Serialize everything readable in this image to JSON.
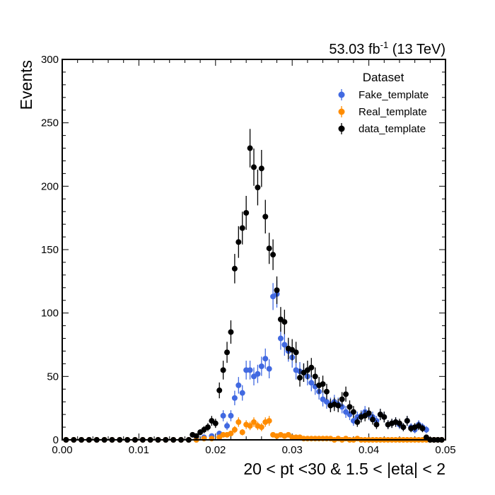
{
  "chart_data": {
    "type": "scatter",
    "title": "",
    "lumi_value": "53.03 fb",
    "lumi_exponent": "-1",
    "lumi_energy": " (13 TeV)",
    "xlabel": "20 < pt <30 & 1.5 < |eta| < 2",
    "ylabel": "Events",
    "xlim": [
      0,
      0.05
    ],
    "ylim": [
      0,
      300
    ],
    "x_ticks": [
      0.0,
      0.01,
      0.02,
      0.03,
      0.04,
      0.05
    ],
    "x_tick_labels": [
      "0.00",
      "0.01",
      "0.02",
      "0.03",
      "0.04",
      "0.05"
    ],
    "y_ticks": [
      0,
      50,
      100,
      150,
      200,
      250,
      300
    ],
    "y_tick_labels": [
      "0",
      "50",
      "100",
      "150",
      "200",
      "250",
      "300"
    ],
    "legend": {
      "title": "Dataset",
      "placement": "top-right",
      "entries": [
        "Fake_template",
        "Real_template",
        "data_template"
      ]
    },
    "colors": {
      "Fake_template": "#4169e1",
      "Real_template": "#ff8c00",
      "data_template": "#000000"
    },
    "series": [
      {
        "name": "Fake_template",
        "points": [
          [
            0.0005,
            0
          ],
          [
            0.0015,
            0
          ],
          [
            0.0025,
            0
          ],
          [
            0.0035,
            0
          ],
          [
            0.0045,
            0
          ],
          [
            0.0055,
            0
          ],
          [
            0.0065,
            0
          ],
          [
            0.0075,
            0
          ],
          [
            0.0085,
            0
          ],
          [
            0.0095,
            0
          ],
          [
            0.0105,
            0
          ],
          [
            0.0115,
            0
          ],
          [
            0.0125,
            0
          ],
          [
            0.0135,
            0
          ],
          [
            0.0145,
            0
          ],
          [
            0.0155,
            0
          ],
          [
            0.0165,
            0
          ],
          [
            0.0175,
            1
          ],
          [
            0.0185,
            2
          ],
          [
            0.0195,
            3
          ],
          [
            0.0205,
            5
          ],
          [
            0.021,
            19
          ],
          [
            0.0215,
            11
          ],
          [
            0.022,
            19
          ],
          [
            0.0225,
            33
          ],
          [
            0.023,
            43
          ],
          [
            0.0235,
            37
          ],
          [
            0.024,
            55
          ],
          [
            0.0245,
            55
          ],
          [
            0.025,
            50
          ],
          [
            0.0255,
            52
          ],
          [
            0.026,
            58
          ],
          [
            0.0265,
            64
          ],
          [
            0.027,
            56
          ],
          [
            0.0275,
            113
          ],
          [
            0.028,
            115
          ],
          [
            0.0285,
            80
          ],
          [
            0.029,
            75
          ],
          [
            0.0295,
            70
          ],
          [
            0.03,
            65
          ],
          [
            0.0305,
            55
          ],
          [
            0.031,
            54
          ],
          [
            0.0315,
            53
          ],
          [
            0.032,
            50
          ],
          [
            0.0325,
            45
          ],
          [
            0.033,
            42
          ],
          [
            0.0335,
            38
          ],
          [
            0.034,
            32
          ],
          [
            0.0345,
            30
          ],
          [
            0.035,
            28
          ],
          [
            0.0355,
            30
          ],
          [
            0.036,
            28
          ],
          [
            0.0365,
            26
          ],
          [
            0.037,
            22
          ],
          [
            0.0375,
            20
          ],
          [
            0.038,
            15
          ],
          [
            0.0385,
            18
          ],
          [
            0.039,
            19
          ],
          [
            0.0395,
            22
          ],
          [
            0.04,
            20
          ],
          [
            0.0405,
            18
          ],
          [
            0.041,
            15
          ],
          [
            0.0415,
            20
          ],
          [
            0.042,
            18
          ],
          [
            0.0425,
            12
          ],
          [
            0.043,
            13
          ],
          [
            0.0435,
            14
          ],
          [
            0.044,
            12
          ],
          [
            0.0445,
            10
          ],
          [
            0.045,
            15
          ],
          [
            0.0455,
            10
          ],
          [
            0.046,
            8
          ],
          [
            0.0465,
            12
          ],
          [
            0.047,
            10
          ],
          [
            0.0475,
            8
          ],
          [
            0.048,
            0
          ],
          [
            0.0485,
            0
          ],
          [
            0.049,
            0
          ],
          [
            0.0495,
            0
          ]
        ]
      },
      {
        "name": "Real_template",
        "points": [
          [
            0.0005,
            0
          ],
          [
            0.0015,
            0
          ],
          [
            0.0025,
            0
          ],
          [
            0.0035,
            0
          ],
          [
            0.0045,
            0
          ],
          [
            0.0055,
            0
          ],
          [
            0.0065,
            0
          ],
          [
            0.0075,
            0
          ],
          [
            0.0085,
            0
          ],
          [
            0.0095,
            0
          ],
          [
            0.0105,
            0
          ],
          [
            0.0115,
            0
          ],
          [
            0.0125,
            0
          ],
          [
            0.0135,
            0
          ],
          [
            0.0145,
            0
          ],
          [
            0.0155,
            0
          ],
          [
            0.0165,
            0
          ],
          [
            0.0175,
            0
          ],
          [
            0.0185,
            1
          ],
          [
            0.0195,
            1
          ],
          [
            0.0205,
            2
          ],
          [
            0.021,
            4
          ],
          [
            0.0215,
            4
          ],
          [
            0.022,
            5
          ],
          [
            0.0225,
            8
          ],
          [
            0.023,
            14
          ],
          [
            0.0235,
            6
          ],
          [
            0.024,
            12
          ],
          [
            0.0245,
            11
          ],
          [
            0.025,
            14
          ],
          [
            0.0255,
            11
          ],
          [
            0.026,
            10
          ],
          [
            0.0265,
            14
          ],
          [
            0.027,
            15
          ],
          [
            0.0275,
            4
          ],
          [
            0.028,
            3
          ],
          [
            0.0285,
            4
          ],
          [
            0.029,
            3
          ],
          [
            0.0295,
            4
          ],
          [
            0.03,
            2
          ],
          [
            0.0305,
            2
          ],
          [
            0.031,
            2
          ],
          [
            0.0315,
            1
          ],
          [
            0.032,
            1
          ],
          [
            0.0325,
            1
          ],
          [
            0.033,
            1
          ],
          [
            0.0335,
            1
          ],
          [
            0.034,
            1
          ],
          [
            0.0345,
            1
          ],
          [
            0.035,
            1
          ],
          [
            0.0355,
            0
          ],
          [
            0.036,
            1
          ],
          [
            0.0365,
            0
          ],
          [
            0.037,
            1
          ],
          [
            0.0375,
            0
          ],
          [
            0.038,
            0
          ],
          [
            0.0385,
            1
          ],
          [
            0.039,
            0
          ],
          [
            0.0395,
            0
          ],
          [
            0.04,
            0
          ],
          [
            0.0405,
            0
          ],
          [
            0.041,
            0
          ],
          [
            0.0415,
            0
          ],
          [
            0.042,
            0
          ],
          [
            0.0425,
            0
          ],
          [
            0.043,
            0
          ],
          [
            0.0435,
            0
          ],
          [
            0.044,
            0
          ],
          [
            0.0445,
            0
          ],
          [
            0.045,
            0
          ],
          [
            0.0455,
            0
          ],
          [
            0.046,
            0
          ],
          [
            0.0465,
            0
          ],
          [
            0.047,
            0
          ],
          [
            0.0475,
            0
          ],
          [
            0.048,
            0
          ],
          [
            0.0485,
            0
          ],
          [
            0.049,
            0
          ],
          [
            0.0495,
            0
          ]
        ]
      },
      {
        "name": "data_template",
        "points": [
          [
            0.0005,
            0
          ],
          [
            0.0015,
            0
          ],
          [
            0.0025,
            0
          ],
          [
            0.0035,
            0
          ],
          [
            0.0045,
            0
          ],
          [
            0.0055,
            0
          ],
          [
            0.0065,
            0
          ],
          [
            0.0075,
            0
          ],
          [
            0.0085,
            0
          ],
          [
            0.0095,
            0
          ],
          [
            0.0105,
            0
          ],
          [
            0.0115,
            0
          ],
          [
            0.0125,
            0
          ],
          [
            0.0135,
            0
          ],
          [
            0.0145,
            0
          ],
          [
            0.0155,
            0
          ],
          [
            0.0165,
            0
          ],
          [
            0.017,
            4
          ],
          [
            0.0175,
            3
          ],
          [
            0.018,
            6
          ],
          [
            0.0185,
            8
          ],
          [
            0.019,
            10
          ],
          [
            0.0195,
            15
          ],
          [
            0.02,
            13
          ],
          [
            0.0205,
            39
          ],
          [
            0.021,
            55
          ],
          [
            0.0215,
            69
          ],
          [
            0.022,
            85
          ],
          [
            0.0225,
            135
          ],
          [
            0.023,
            156
          ],
          [
            0.0235,
            167
          ],
          [
            0.024,
            179
          ],
          [
            0.0245,
            230
          ],
          [
            0.025,
            215
          ],
          [
            0.0255,
            199
          ],
          [
            0.026,
            214
          ],
          [
            0.0265,
            176
          ],
          [
            0.027,
            151
          ],
          [
            0.0275,
            146
          ],
          [
            0.028,
            118
          ],
          [
            0.0285,
            95
          ],
          [
            0.029,
            93
          ],
          [
            0.0295,
            72
          ],
          [
            0.03,
            71
          ],
          [
            0.0305,
            69
          ],
          [
            0.031,
            49
          ],
          [
            0.0315,
            53
          ],
          [
            0.032,
            55
          ],
          [
            0.0325,
            57
          ],
          [
            0.033,
            50
          ],
          [
            0.0335,
            43
          ],
          [
            0.034,
            44
          ],
          [
            0.0345,
            38
          ],
          [
            0.035,
            27
          ],
          [
            0.0355,
            28
          ],
          [
            0.036,
            27
          ],
          [
            0.0365,
            32
          ],
          [
            0.037,
            36
          ],
          [
            0.0375,
            26
          ],
          [
            0.038,
            22
          ],
          [
            0.0385,
            14
          ],
          [
            0.039,
            18
          ],
          [
            0.0395,
            19
          ],
          [
            0.04,
            21
          ],
          [
            0.0405,
            16
          ],
          [
            0.041,
            12
          ],
          [
            0.0415,
            20
          ],
          [
            0.042,
            18
          ],
          [
            0.0425,
            12
          ],
          [
            0.043,
            13
          ],
          [
            0.0435,
            14
          ],
          [
            0.044,
            13
          ],
          [
            0.0445,
            10
          ],
          [
            0.045,
            15
          ],
          [
            0.0455,
            9
          ],
          [
            0.046,
            10
          ],
          [
            0.0465,
            11
          ],
          [
            0.047,
            9
          ],
          [
            0.0475,
            2
          ],
          [
            0.048,
            0
          ],
          [
            0.0485,
            0
          ],
          [
            0.049,
            0
          ],
          [
            0.0495,
            0
          ]
        ]
      }
    ]
  }
}
